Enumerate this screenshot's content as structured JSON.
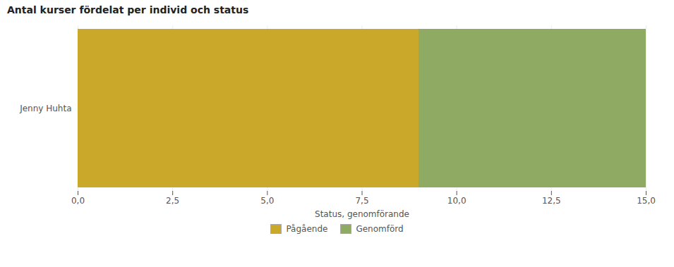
{
  "chart_data": {
    "type": "bar",
    "orientation": "horizontal",
    "stacked": true,
    "title": "Antal kurser fördelat per individ och status",
    "categories": [
      "Jenny Huhta"
    ],
    "series": [
      {
        "name": "Pågående",
        "color": "#c9a82a",
        "values": [
          9
        ]
      },
      {
        "name": "Genomförd",
        "color": "#8faa62",
        "values": [
          6
        ]
      }
    ],
    "xlabel": "Status, genomförande",
    "xlim": [
      0,
      15
    ],
    "xticks": [
      {
        "value": 0.0,
        "label": "0,0"
      },
      {
        "value": 2.5,
        "label": "2,5"
      },
      {
        "value": 5.0,
        "label": "5,0"
      },
      {
        "value": 7.5,
        "label": "7,5"
      },
      {
        "value": 10.0,
        "label": "10,0"
      },
      {
        "value": 12.5,
        "label": "12,5"
      },
      {
        "value": 15.0,
        "label": "15,0"
      }
    ],
    "grid": true,
    "legend": "bottom"
  }
}
